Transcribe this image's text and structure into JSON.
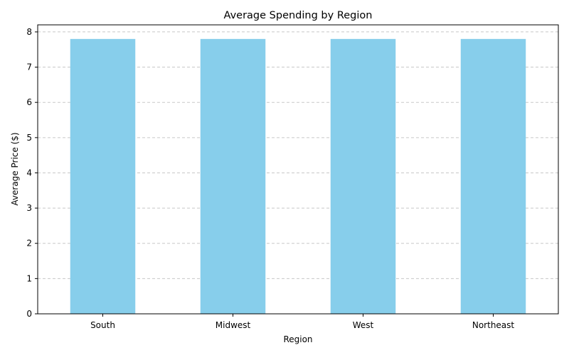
{
  "chart_data": {
    "type": "bar",
    "title": "Average Spending by Region",
    "xlabel": "Region",
    "ylabel": "Average Price ($)",
    "categories": [
      "South",
      "Midwest",
      "West",
      "Northeast"
    ],
    "values": [
      7.8,
      7.8,
      7.8,
      7.8
    ],
    "ylim": [
      0,
      8.2
    ],
    "yticks": [
      0,
      1,
      2,
      3,
      4,
      5,
      6,
      7,
      8
    ],
    "grid": "y-dashed",
    "legend": "none",
    "bar_color": "#87CEEB",
    "grid_color": "#c8c8c8"
  }
}
